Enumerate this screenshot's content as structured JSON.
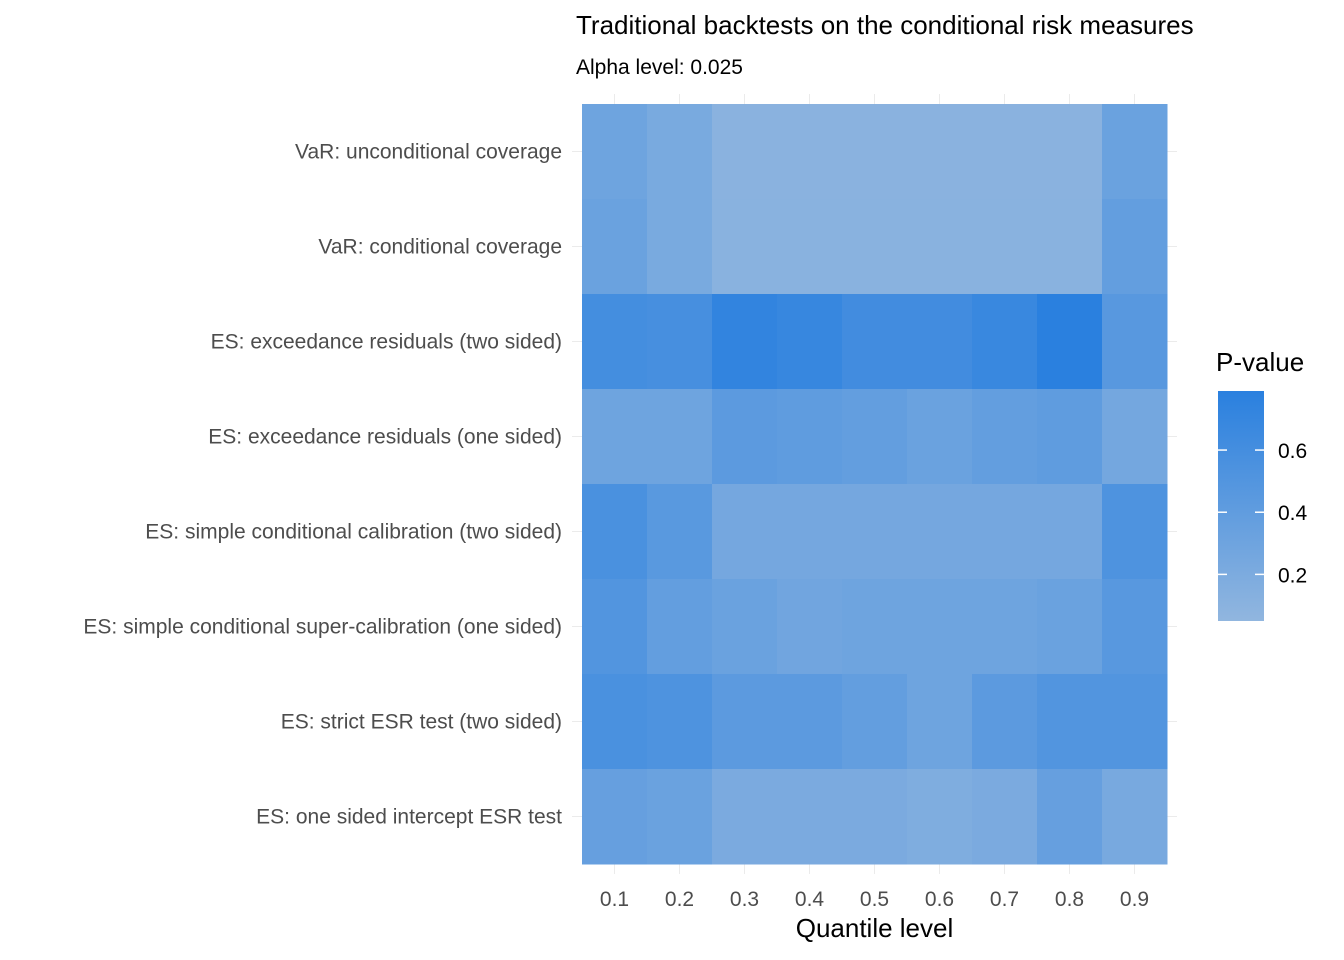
{
  "chart_data": {
    "type": "heatmap",
    "title": "Traditional backtests on the conditional risk measures",
    "subtitle": "Alpha level: 0.025",
    "xlabel": "Quantile level",
    "ylabel": "",
    "x": [
      "0.1",
      "0.2",
      "0.3",
      "0.4",
      "0.5",
      "0.6",
      "0.7",
      "0.8",
      "0.9"
    ],
    "y": [
      "VaR: unconditional coverage",
      "VaR: conditional coverage",
      "ES: exceedance residuals (two sided)",
      "ES: exceedance residuals (one sided)",
      "ES: simple conditional calibration (two sided)",
      "ES: simple conditional super-calibration (one sided)",
      "ES: strict ESR test (two sided)",
      "ES: one sided intercept ESR test"
    ],
    "values": [
      [
        0.3,
        0.22,
        0.1,
        0.1,
        0.1,
        0.1,
        0.1,
        0.1,
        0.33
      ],
      [
        0.33,
        0.22,
        0.11,
        0.11,
        0.11,
        0.11,
        0.11,
        0.11,
        0.38
      ],
      [
        0.6,
        0.58,
        0.73,
        0.7,
        0.62,
        0.62,
        0.68,
        0.79,
        0.46
      ],
      [
        0.3,
        0.3,
        0.43,
        0.41,
        0.38,
        0.33,
        0.38,
        0.41,
        0.26
      ],
      [
        0.56,
        0.45,
        0.25,
        0.25,
        0.25,
        0.25,
        0.25,
        0.25,
        0.53
      ],
      [
        0.5,
        0.38,
        0.33,
        0.28,
        0.3,
        0.3,
        0.3,
        0.33,
        0.46
      ],
      [
        0.56,
        0.53,
        0.43,
        0.43,
        0.38,
        0.3,
        0.43,
        0.5,
        0.5
      ],
      [
        0.36,
        0.33,
        0.21,
        0.21,
        0.21,
        0.18,
        0.21,
        0.36,
        0.23
      ]
    ],
    "legend": {
      "title": "P-value",
      "breaks": [
        0.2,
        0.4,
        0.6
      ],
      "labels": [
        "0.2",
        "0.4",
        "0.6"
      ],
      "range": [
        0.05,
        0.79
      ],
      "low_color": "#91b6df",
      "high_color": "#2a80df",
      "placement": "right"
    },
    "grid": true
  }
}
